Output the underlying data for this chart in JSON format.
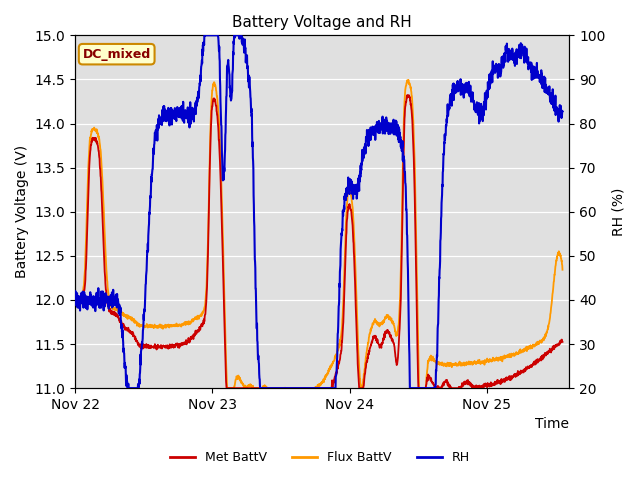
{
  "title": "Battery Voltage and RH",
  "xlabel": "Time",
  "ylabel_left": "Battery Voltage (V)",
  "ylabel_right": "RH (%)",
  "annotation": "DC_mixed",
  "ylim_left": [
    11.0,
    15.0
  ],
  "ylim_right": [
    20,
    100
  ],
  "yticks_left": [
    11.0,
    11.5,
    12.0,
    12.5,
    13.0,
    13.5,
    14.0,
    14.5,
    15.0
  ],
  "yticks_right": [
    20,
    30,
    40,
    50,
    60,
    70,
    80,
    90,
    100
  ],
  "xtick_labels": [
    "Nov 22",
    "Nov 23",
    "Nov 24",
    "Nov 25"
  ],
  "xtick_positions": [
    0,
    1,
    2,
    3
  ],
  "xlim": [
    0,
    3.6
  ],
  "bg_color": "#e0e0e0",
  "line_colors": {
    "met": "#cc0000",
    "flux": "#ff9900",
    "rh": "#0000cc"
  },
  "line_widths": {
    "met": 1.3,
    "flux": 1.3,
    "rh": 1.5
  },
  "legend_labels": [
    "Met BattV",
    "Flux BattV",
    "RH"
  ],
  "annotation_bg": "#ffffcc",
  "annotation_border": "#cc8800",
  "annotation_text_color": "#880000",
  "title_fontsize": 11,
  "axis_fontsize": 10,
  "legend_fontsize": 9
}
